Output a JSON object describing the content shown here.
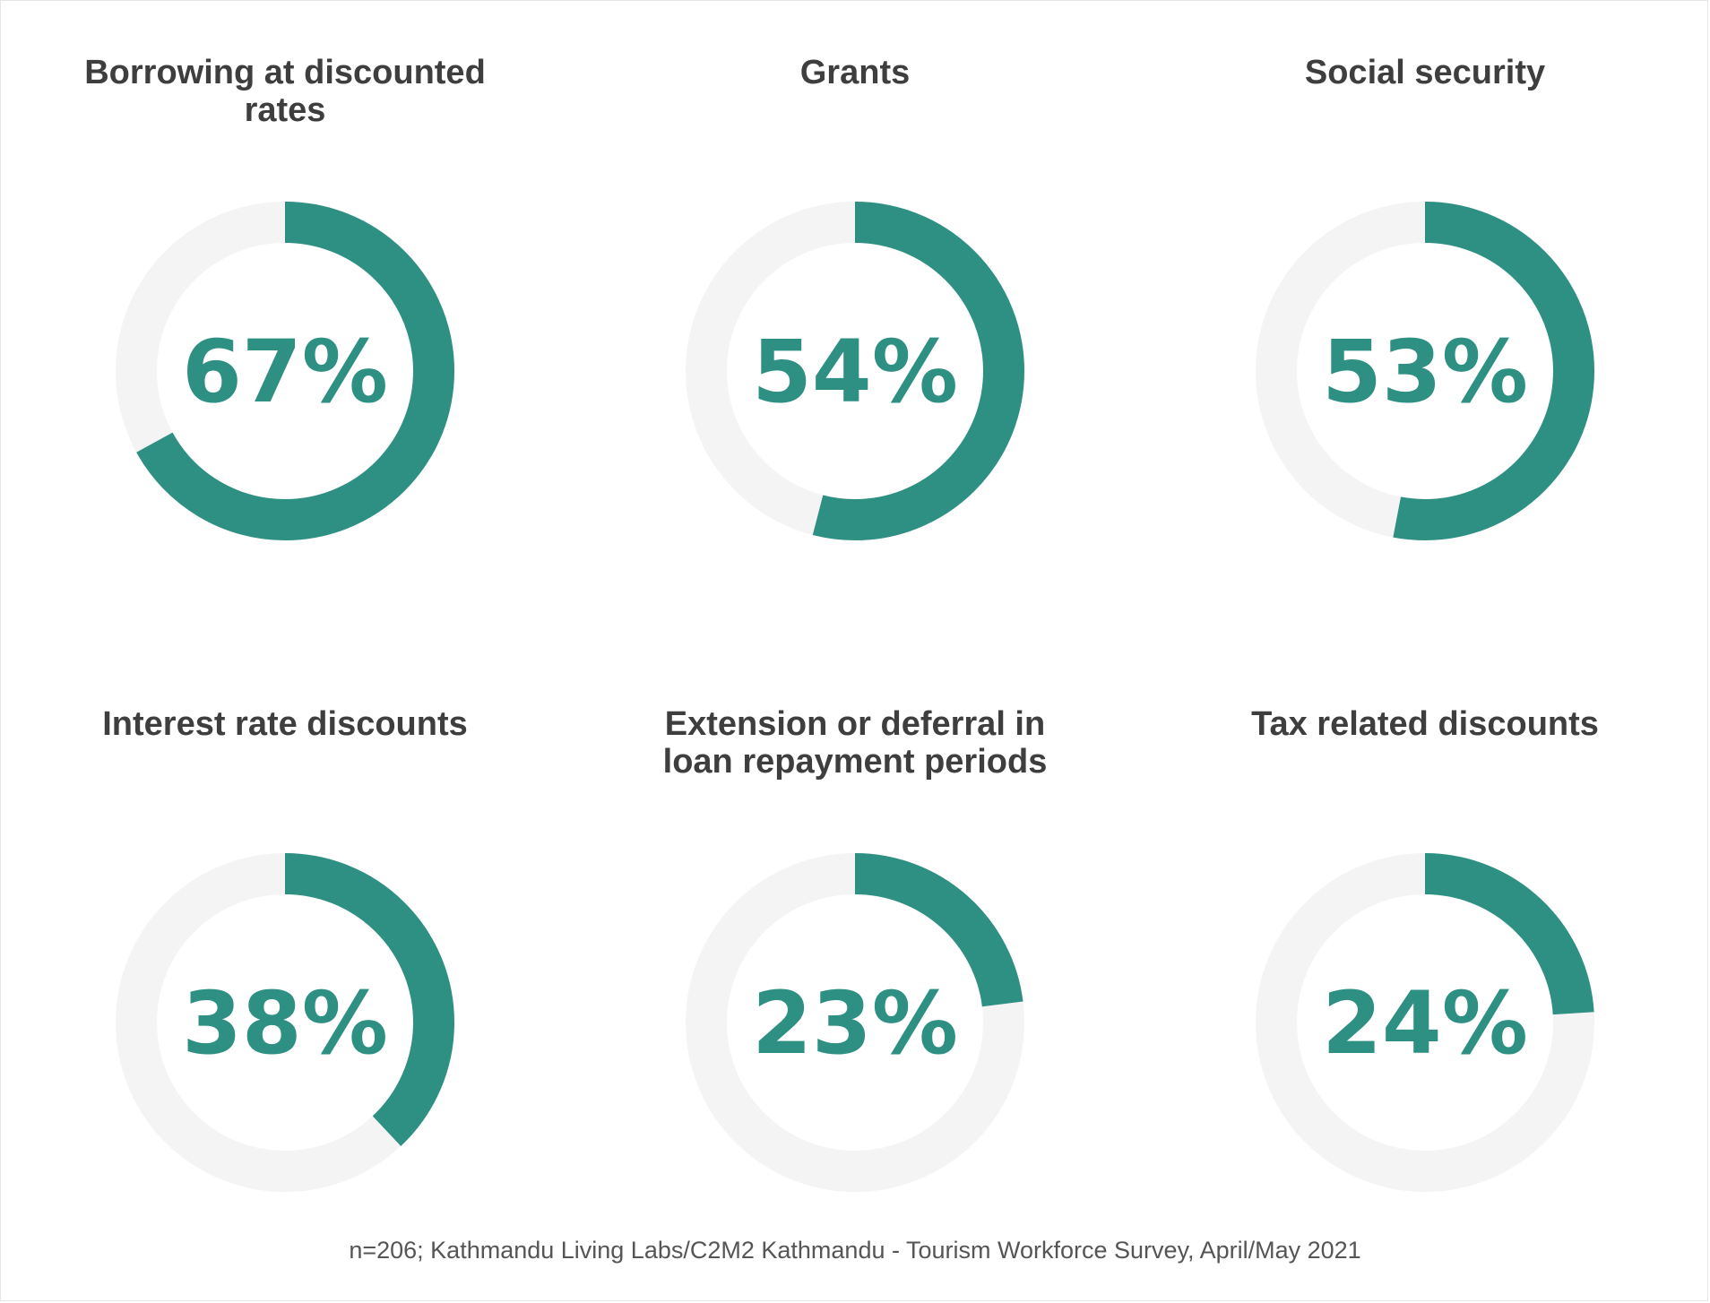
{
  "chart_data": {
    "type": "pie",
    "subtype": "donut-grid",
    "charts": [
      {
        "title": "Borrowing at discounted rates",
        "value": 67,
        "label": "67%"
      },
      {
        "title": "Grants",
        "value": 54,
        "label": "54%"
      },
      {
        "title": "Social security",
        "value": 53,
        "label": "53%"
      },
      {
        "title": "Interest rate discounts",
        "value": 38,
        "label": "38%"
      },
      {
        "title": "Extension or deferral in loan repayment periods",
        "value": 23,
        "label": "23%"
      },
      {
        "title": "Tax related discounts",
        "value": 24,
        "label": "24%"
      }
    ],
    "max": 100,
    "colors": {
      "fill": "#2e8f83",
      "track": "#f4f4f4",
      "title": "#3e3e3e"
    }
  },
  "footer": {
    "source": "n=206; Kathmandu Living Labs/C2M2 Kathmandu - Tourism Workforce Survey, April/May 2021"
  }
}
